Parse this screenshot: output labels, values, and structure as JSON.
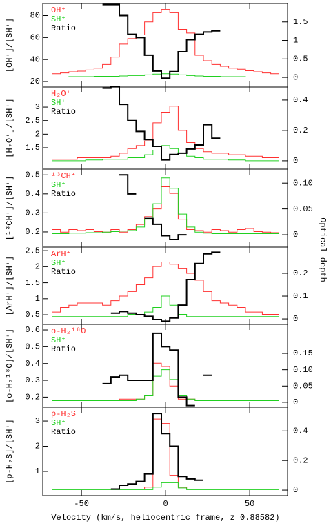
{
  "xlabel": "Velocity (km/s, heliocentric frame, z=0.88582)",
  "y2label": "Optical depth",
  "xlim": [
    -73,
    72.5
  ],
  "xticks": [
    -50,
    0,
    50
  ],
  "chart_data": [
    {
      "type": "step",
      "ylabel": "[OH⁺]/[SH⁺]",
      "ylim": [
        15,
        91
      ],
      "yticks": [
        20,
        40,
        60,
        80
      ],
      "y2lim": [
        -0.26,
        2.0
      ],
      "y2ticks": [
        0,
        0.5,
        1,
        1.5
      ],
      "x": [
        -65,
        -60,
        -55,
        -50,
        -45,
        -40,
        -35,
        -30,
        -25,
        -20,
        -15,
        -10,
        -5,
        0,
        5,
        10,
        15,
        20,
        25,
        30,
        35,
        40,
        45,
        50,
        55,
        60,
        65
      ],
      "series": [
        {
          "name": "OH⁺",
          "color": "#ff3030",
          "axis": "y2",
          "values": [
            0.1,
            0.12,
            0.15,
            0.17,
            0.2,
            0.25,
            0.35,
            0.55,
            0.9,
            1.05,
            1.15,
            1.5,
            1.75,
            1.84,
            1.75,
            1.3,
            1.2,
            0.6,
            0.45,
            0.35,
            0.3,
            0.25,
            0.22,
            0.18,
            0.15,
            0.12,
            0.1
          ]
        },
        {
          "name": "SH⁺",
          "color": "#20d020",
          "axis": "y2",
          "values": [
            0.01,
            0.01,
            0.02,
            0.02,
            0.02,
            0.03,
            0.03,
            0.03,
            0.04,
            0.05,
            0.05,
            0.07,
            0.09,
            0.1,
            0.09,
            0.07,
            0.05,
            0.04,
            0.03,
            0.03,
            0.02,
            0.02,
            0.02,
            0.01,
            0.01,
            0.01,
            0.01
          ]
        },
        {
          "name": "Ratio",
          "color": "#000000",
          "values": [
            null,
            null,
            null,
            null,
            null,
            null,
            90,
            90,
            80,
            63,
            60,
            44,
            29.5,
            23,
            29,
            47,
            58,
            63,
            65,
            66,
            null,
            null,
            null,
            null,
            null,
            null,
            null
          ]
        }
      ]
    },
    {
      "type": "step",
      "ylabel": "[H₂O⁺]/[SH⁺]",
      "ylim": [
        0.71,
        3.74
      ],
      "yticks": [
        1.5,
        2,
        2.5,
        3
      ],
      "y2lim": [
        -0.055,
        0.486
      ],
      "y2ticks": [
        0,
        0.2,
        0.4
      ],
      "x": [
        -65,
        -60,
        -55,
        -50,
        -45,
        -40,
        -35,
        -30,
        -25,
        -20,
        -15,
        -10,
        -5,
        0,
        5,
        10,
        15,
        20,
        25,
        30,
        35,
        40,
        45,
        50,
        55,
        60,
        65
      ],
      "series": [
        {
          "name": "H₂O⁺",
          "color": "#ff3030",
          "axis": "y2",
          "values": [
            0.01,
            0.01,
            0.01,
            0.02,
            0.02,
            0.02,
            0.02,
            0.03,
            0.05,
            0.08,
            0.1,
            0.13,
            0.25,
            0.32,
            0.36,
            0.2,
            0.12,
            0.08,
            0.06,
            0.05,
            0.05,
            0.04,
            0.04,
            0.03,
            0.03,
            0.02,
            0.02
          ]
        },
        {
          "name": "SH⁺",
          "color": "#20d020",
          "axis": "y2",
          "values": [
            0,
            0,
            0,
            0,
            0.005,
            0.005,
            0.01,
            0.01,
            0.01,
            0.02,
            0.02,
            0.04,
            0.07,
            0.1,
            0.08,
            0.05,
            0.03,
            0.02,
            0.01,
            0.01,
            0.01,
            0.005,
            0.005,
            0,
            0,
            0,
            0
          ]
        },
        {
          "name": "Ratio",
          "color": "#000000",
          "values": [
            null,
            null,
            null,
            null,
            null,
            null,
            3.7,
            3.75,
            3.1,
            2.5,
            2.1,
            1.8,
            1.55,
            1.05,
            1.25,
            1.3,
            1.45,
            1.6,
            2.35,
            1.85,
            null,
            null,
            null,
            null,
            null,
            null,
            null
          ]
        }
      ]
    },
    {
      "type": "step",
      "ylabel": "[¹³CH⁺]/[SH⁺]",
      "ylim": [
        0.12,
        0.53
      ],
      "yticks": [
        0.2,
        0.3,
        0.4,
        0.5
      ],
      "y2lim": [
        -0.024,
        0.127
      ],
      "y2ticks": [
        0,
        0.05,
        {
          "value": 0.1,
          "label": "0.10"
        }
      ],
      "x": [
        -65,
        -60,
        -55,
        -50,
        -45,
        -40,
        -35,
        -30,
        -25,
        -20,
        -15,
        -10,
        -5,
        0,
        5,
        10,
        15,
        20,
        25,
        30,
        35,
        40,
        45,
        50,
        55,
        60,
        65
      ],
      "series": [
        {
          "name": "¹³CH⁺",
          "color": "#ff3030",
          "axis": "y2",
          "values": [
            0.01,
            0.005,
            0.01,
            0.008,
            0.01,
            0.006,
            0.005,
            0.01,
            0.005,
            0.01,
            0.02,
            0.035,
            0.05,
            0.093,
            0.08,
            0.03,
            0.01,
            0.008,
            0.005,
            0.01,
            0.008,
            0.005,
            0.01,
            0.012,
            0.006,
            0.005,
            0.004
          ]
        },
        {
          "name": "SH⁺",
          "color": "#20d020",
          "axis": "y2",
          "values": [
            0.002,
            0.002,
            0.003,
            0.003,
            0.004,
            0.004,
            0.005,
            0.006,
            0.007,
            0.008,
            0.015,
            0.03,
            0.06,
            0.11,
            0.09,
            0.04,
            0.015,
            0.005,
            0.003,
            0.002,
            0.002,
            0.002,
            0.002,
            0.002,
            0.002,
            0.002,
            0.002
          ]
        },
        {
          "name": "Ratio",
          "color": "#000000",
          "values": [
            null,
            null,
            null,
            null,
            null,
            null,
            null,
            null,
            0.5,
            0.4,
            null,
            0.27,
            0.24,
            0.18,
            0.16,
            0.185,
            null,
            null,
            null,
            null,
            null,
            null,
            null,
            null,
            null,
            null,
            null
          ]
        }
      ]
    },
    {
      "type": "step",
      "ylabel": "[ArH⁺]/[SH⁺]",
      "ylim": [
        0.2,
        2.61
      ],
      "yticks": [
        0.5,
        1,
        1.5,
        2,
        2.5
      ],
      "y2lim": [
        -0.024,
        0.315
      ],
      "y2ticks": [
        0,
        0.1,
        0.2
      ],
      "x": [
        -65,
        -60,
        -55,
        -50,
        -45,
        -40,
        -35,
        -30,
        -25,
        -20,
        -15,
        -10,
        -5,
        0,
        5,
        10,
        15,
        20,
        25,
        30,
        35,
        40,
        45,
        50,
        55,
        60,
        65
      ],
      "series": [
        {
          "name": "ArH⁺",
          "color": "#ff3030",
          "axis": "y2",
          "values": [
            0.03,
            0.05,
            0.06,
            0.07,
            0.07,
            0.07,
            0.06,
            0.08,
            0.1,
            0.12,
            0.15,
            0.18,
            0.23,
            0.25,
            0.24,
            0.22,
            0.2,
            0.17,
            0.12,
            0.08,
            0.07,
            0.06,
            0.05,
            0.03,
            0.03,
            0.02,
            0.02
          ]
        },
        {
          "name": "SH⁺",
          "color": "#20d020",
          "axis": "y2",
          "values": [
            0.01,
            0.01,
            0.01,
            0.01,
            0.01,
            0.01,
            0.01,
            0.01,
            0.01,
            0.02,
            0.02,
            0.03,
            0.05,
            0.1,
            0.06,
            0.02,
            0.01,
            0.01,
            0.01,
            0.01,
            0.01,
            0.01,
            0.01,
            0.01,
            0.01,
            0.01,
            0.01
          ]
        },
        {
          "name": "Ratio",
          "color": "#000000",
          "values": [
            null,
            null,
            null,
            null,
            null,
            null,
            null,
            0.55,
            0.6,
            0.55,
            0.5,
            0.45,
            0.35,
            0.3,
            0.4,
            0.8,
            1.6,
            2.1,
            2.4,
            2.45,
            null,
            null,
            null,
            null,
            null,
            null,
            null
          ]
        }
      ]
    },
    {
      "type": "step",
      "ylabel": "[o-H₂¹⁸O]/[SH⁺]",
      "ylim": [
        0.14,
        0.633
      ],
      "yticks": [
        0.2,
        0.3,
        0.4,
        0.5,
        0.6
      ],
      "y2lim": [
        -0.015,
        0.239
      ],
      "y2ticks": [
        0,
        0.05,
        {
          "value": 0.1,
          "label": "0.10"
        },
        0.15
      ],
      "x": [
        -65,
        -60,
        -55,
        -50,
        -45,
        -40,
        -35,
        -30,
        -25,
        -20,
        -15,
        -10,
        -5,
        0,
        5,
        10,
        15,
        20,
        25,
        30,
        35,
        40,
        45,
        50,
        55,
        60,
        65
      ],
      "series": [
        {
          "name": "o-H₂¹⁸O",
          "color": "#ff3030",
          "axis": "y2",
          "values": [
            0.005,
            0.005,
            0.005,
            0.005,
            0.005,
            0.005,
            0.005,
            0.005,
            0.01,
            0.01,
            0.01,
            0.02,
            0.12,
            0.11,
            0.05,
            0.01,
            0.01,
            0.005,
            0.005,
            0.005,
            0.005,
            0.005,
            0.005,
            0.005,
            0.005,
            0.005,
            0.005
          ]
        },
        {
          "name": "SH⁺",
          "color": "#20d020",
          "axis": "y2",
          "values": [
            0.005,
            0.005,
            0.005,
            0.005,
            0.005,
            0.005,
            0.005,
            0.005,
            0.005,
            0.005,
            0.01,
            0.02,
            0.08,
            0.1,
            0.07,
            0.02,
            0.01,
            0.005,
            0.005,
            0.005,
            0.005,
            0.005,
            0.005,
            0.005,
            0.005,
            0.005,
            0.005
          ]
        },
        {
          "name": "Ratio",
          "color": "#000000",
          "values": [
            null,
            null,
            null,
            null,
            null,
            null,
            0.28,
            0.32,
            0.33,
            0.3,
            0.3,
            0.3,
            0.58,
            0.5,
            0.48,
            0.2,
            0.15,
            null,
            0.33,
            null,
            null,
            null,
            null,
            null,
            null,
            null,
            null
          ]
        }
      ]
    },
    {
      "type": "step",
      "ylabel": "[p-H₂S]/[SH⁺]",
      "ylim": [
        0.04,
        3.55
      ],
      "yticks": [
        1,
        2,
        3
      ],
      "y2lim": [
        -0.037,
        0.56
      ],
      "y2ticks": [
        0,
        0.2,
        0.4
      ],
      "x": [
        -65,
        -60,
        -55,
        -50,
        -45,
        -40,
        -35,
        -30,
        -25,
        -20,
        -15,
        -10,
        -5,
        0,
        5,
        10,
        15,
        20,
        25,
        30,
        35,
        40,
        45,
        50,
        55,
        60,
        65
      ],
      "series": [
        {
          "name": "p-H₂S",
          "color": "#ff3030",
          "axis": "y2",
          "values": [
            0.005,
            0.005,
            0.005,
            0.005,
            0.005,
            0.005,
            0.005,
            0.005,
            0.005,
            0.005,
            0.005,
            0.02,
            0.48,
            0.45,
            0.1,
            0.02,
            0.005,
            0.005,
            0.005,
            0.005,
            0.005,
            0.005,
            0.005,
            0.005,
            0.005,
            0.005,
            0.005
          ]
        },
        {
          "name": "SH⁺",
          "color": "#20d020",
          "axis": "y2",
          "values": [
            0.003,
            0.003,
            0.003,
            0.003,
            0.003,
            0.003,
            0.003,
            0.003,
            0.003,
            0.003,
            0.003,
            0.003,
            0.02,
            0.05,
            0.05,
            0.015,
            0.003,
            0.003,
            0.003,
            0.003,
            0.003,
            0.003,
            0.003,
            0.003,
            0.003,
            0.003,
            0.003
          ]
        },
        {
          "name": "Ratio",
          "color": "#000000",
          "values": [
            null,
            null,
            null,
            null,
            null,
            null,
            null,
            0.3,
            0.45,
            0.5,
            0.6,
            0.9,
            3.3,
            2.5,
            2.0,
            0.8,
            0.7,
            0.65,
            null,
            null,
            null,
            null,
            null,
            null,
            null,
            null,
            null
          ]
        }
      ]
    }
  ]
}
